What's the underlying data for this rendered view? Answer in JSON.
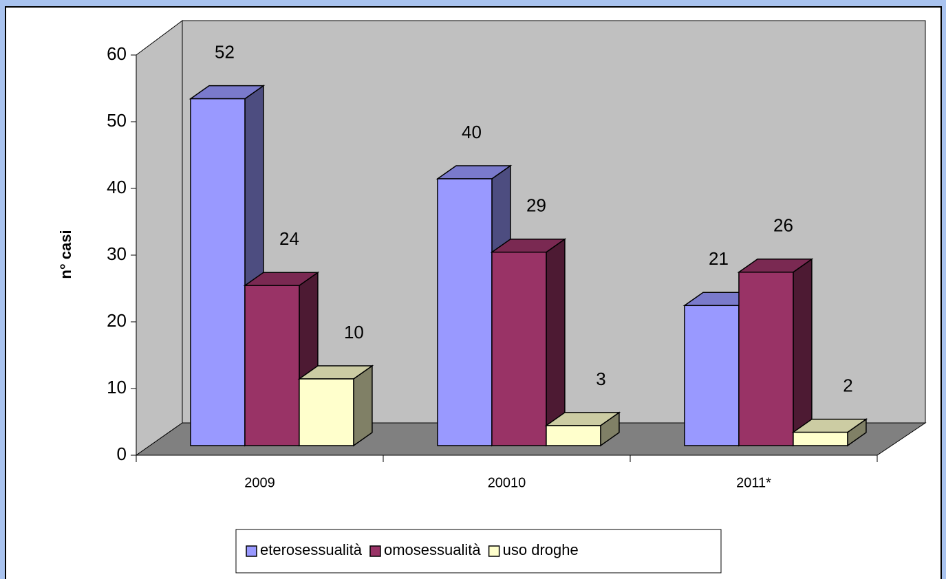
{
  "chart_data": {
    "type": "bar3d",
    "y_label": "n° casi",
    "categories": [
      "2009",
      "20010",
      "2011*"
    ],
    "series": [
      {
        "name": "eterosessualità",
        "color": "#9999ff",
        "values": [
          52,
          40,
          21
        ]
      },
      {
        "name": "omosessualità",
        "color": "#993366",
        "values": [
          24,
          29,
          26
        ]
      },
      {
        "name": "uso droghe",
        "color": "#ffffcc",
        "values": [
          10,
          3,
          2
        ]
      }
    ],
    "ylim": [
      0,
      60
    ],
    "yticks": [
      0,
      10,
      20,
      30,
      40,
      50,
      60
    ],
    "grid": false,
    "legend": "bottom"
  }
}
